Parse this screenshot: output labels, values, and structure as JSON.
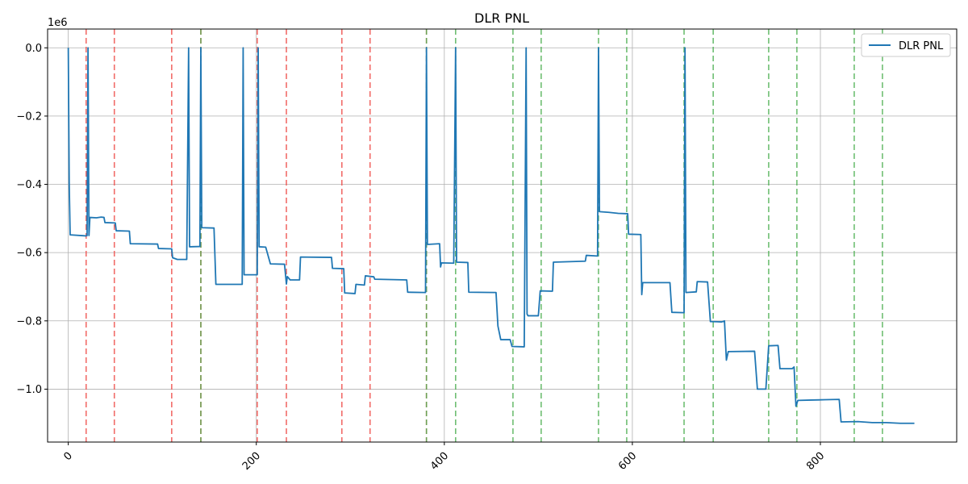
{
  "chart_data": {
    "type": "line",
    "title": "DLR PNL",
    "xlabel": "",
    "ylabel": "",
    "y_offset_label": "1e6",
    "xlim": [
      -22,
      945
    ],
    "ylim": [
      -1.155,
      0.055
    ],
    "x_ticks": [
      0,
      200,
      400,
      600,
      800
    ],
    "x_tick_labels": [
      "0",
      "200",
      "400",
      "600",
      "800"
    ],
    "y_ticks": [
      0.0,
      -0.2,
      -0.4,
      -0.6,
      -0.8,
      -1.0
    ],
    "y_tick_labels": [
      "0.0",
      "−0.2",
      "−0.4",
      "−0.6",
      "−0.8",
      "−1.0"
    ],
    "grid": true,
    "legend_position": "top-right",
    "colors": {
      "series": "#1f77b4",
      "red_lines": "#ef5350",
      "green_lines": "#4caf50",
      "grid": "#b0b0b0"
    },
    "vertical_lines": {
      "red": [
        19,
        49,
        110,
        141,
        201,
        232,
        291,
        321,
        381
      ],
      "green": [
        141,
        381,
        412,
        473,
        503,
        564,
        594,
        655,
        686,
        745,
        775,
        836,
        866
      ]
    },
    "series": [
      {
        "name": "DLR PNL",
        "points": [
          [
            0,
            0.0
          ],
          [
            1,
            -0.4
          ],
          [
            2,
            -0.548
          ],
          [
            19,
            -0.551
          ],
          [
            20,
            -0.55
          ],
          [
            21,
            0.0
          ],
          [
            22,
            -0.55
          ],
          [
            23,
            -0.497
          ],
          [
            30,
            -0.498
          ],
          [
            35,
            -0.496
          ],
          [
            38,
            -0.497
          ],
          [
            39,
            -0.512
          ],
          [
            50,
            -0.513
          ],
          [
            51,
            -0.536
          ],
          [
            65,
            -0.537
          ],
          [
            66,
            -0.574
          ],
          [
            95,
            -0.575
          ],
          [
            96,
            -0.588
          ],
          [
            110,
            -0.589
          ],
          [
            111,
            -0.615
          ],
          [
            116,
            -0.62
          ],
          [
            126,
            -0.62
          ],
          [
            128,
            0.0
          ],
          [
            129,
            -0.583
          ],
          [
            140,
            -0.582
          ],
          [
            141,
            0.0
          ],
          [
            142,
            -0.527
          ],
          [
            155,
            -0.528
          ],
          [
            157,
            -0.693
          ],
          [
            185,
            -0.693
          ],
          [
            186,
            0.0
          ],
          [
            187,
            -0.665
          ],
          [
            201,
            -0.665
          ],
          [
            202,
            0.0
          ],
          [
            203,
            -0.583
          ],
          [
            210,
            -0.584
          ],
          [
            215,
            -0.633
          ],
          [
            230,
            -0.634
          ],
          [
            232,
            -0.692
          ],
          [
            233,
            -0.67
          ],
          [
            236,
            -0.68
          ],
          [
            246,
            -0.68
          ],
          [
            247,
            -0.613
          ],
          [
            280,
            -0.614
          ],
          [
            281,
            -0.646
          ],
          [
            293,
            -0.647
          ],
          [
            294,
            -0.718
          ],
          [
            305,
            -0.72
          ],
          [
            306,
            -0.693
          ],
          [
            315,
            -0.695
          ],
          [
            316,
            -0.668
          ],
          [
            325,
            -0.671
          ],
          [
            326,
            -0.678
          ],
          [
            360,
            -0.68
          ],
          [
            361,
            -0.716
          ],
          [
            380,
            -0.717
          ],
          [
            381,
            0.0
          ],
          [
            382,
            -0.576
          ],
          [
            395,
            -0.574
          ],
          [
            396,
            -0.642
          ],
          [
            397,
            -0.63
          ],
          [
            410,
            -0.631
          ],
          [
            412,
            0.0
          ],
          [
            413,
            -0.628
          ],
          [
            425,
            -0.629
          ],
          [
            426,
            -0.716
          ],
          [
            455,
            -0.717
          ],
          [
            457,
            -0.815
          ],
          [
            460,
            -0.855
          ],
          [
            470,
            -0.855
          ],
          [
            472,
            -0.875
          ],
          [
            485,
            -0.876
          ],
          [
            487,
            0.0
          ],
          [
            488,
            -0.78
          ],
          [
            489,
            -0.785
          ],
          [
            500,
            -0.785
          ],
          [
            502,
            -0.712
          ],
          [
            515,
            -0.713
          ],
          [
            516,
            -0.628
          ],
          [
            540,
            -0.626
          ],
          [
            550,
            -0.625
          ],
          [
            551,
            -0.608
          ],
          [
            563,
            -0.61
          ],
          [
            564,
            0.0
          ],
          [
            565,
            -0.48
          ],
          [
            575,
            -0.482
          ],
          [
            585,
            -0.485
          ],
          [
            595,
            -0.486
          ],
          [
            596,
            -0.546
          ],
          [
            609,
            -0.547
          ],
          [
            610,
            -0.723
          ],
          [
            611,
            -0.688
          ],
          [
            640,
            -0.688
          ],
          [
            642,
            -0.775
          ],
          [
            655,
            -0.776
          ],
          [
            656,
            0.0
          ],
          [
            657,
            -0.717
          ],
          [
            668,
            -0.715
          ],
          [
            669,
            -0.685
          ],
          [
            680,
            -0.686
          ],
          [
            683,
            -0.802
          ],
          [
            695,
            -0.803
          ],
          [
            698,
            -0.8
          ],
          [
            700,
            -0.915
          ],
          [
            702,
            -0.89
          ],
          [
            730,
            -0.889
          ],
          [
            733,
            -1.0
          ],
          [
            742,
            -1.0
          ],
          [
            745,
            -0.873
          ],
          [
            755,
            -0.872
          ],
          [
            757,
            -0.94
          ],
          [
            770,
            -0.94
          ],
          [
            772,
            -0.935
          ],
          [
            774,
            -1.05
          ],
          [
            776,
            -1.033
          ],
          [
            790,
            -1.032
          ],
          [
            805,
            -1.031
          ],
          [
            820,
            -1.03
          ],
          [
            822,
            -1.096
          ],
          [
            840,
            -1.095
          ],
          [
            855,
            -1.098
          ],
          [
            870,
            -1.098
          ],
          [
            885,
            -1.1
          ],
          [
            895,
            -1.1
          ],
          [
            900,
            -1.1
          ]
        ]
      }
    ]
  }
}
